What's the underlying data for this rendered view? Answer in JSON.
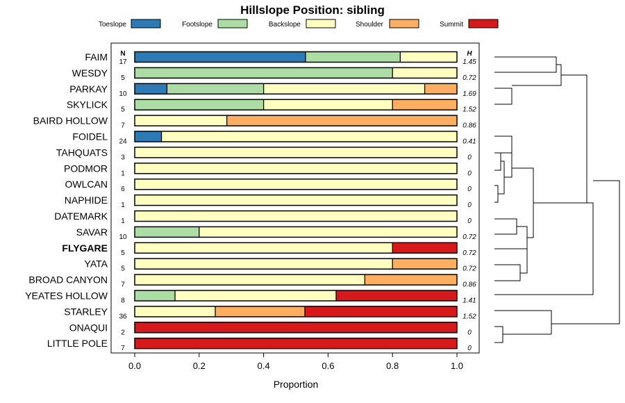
{
  "chart_data": {
    "type": "bar",
    "orientation": "horizontal",
    "stacked": true,
    "title": "Hillslope Position: sibling",
    "xlabel": "Proportion",
    "xlim": [
      0,
      1
    ],
    "xticks": [
      "0.0",
      "0.2",
      "0.4",
      "0.6",
      "0.8",
      "1.0"
    ],
    "n_header": "N",
    "h_header": "H",
    "legend": [
      {
        "name": "Toeslope",
        "color": "#2c7bb6"
      },
      {
        "name": "Footslope",
        "color": "#abdda4"
      },
      {
        "name": "Backslope",
        "color": "#ffffbf"
      },
      {
        "name": "Shoulder",
        "color": "#fdae61"
      },
      {
        "name": "Summit",
        "color": "#d7191c"
      }
    ],
    "rows": [
      {
        "name": "FAIM",
        "n": "17",
        "h": "1.45",
        "bold": false,
        "values": [
          0.53,
          0.294,
          0.176,
          0,
          0
        ]
      },
      {
        "name": "WESDY",
        "n": "5",
        "h": "0.72",
        "bold": false,
        "values": [
          0,
          0.8,
          0.2,
          0,
          0
        ]
      },
      {
        "name": "PARKAY",
        "n": "10",
        "h": "1.69",
        "bold": false,
        "values": [
          0.1,
          0.3,
          0.5,
          0.1,
          0
        ]
      },
      {
        "name": "SKYLICK",
        "n": "5",
        "h": "1.52",
        "bold": false,
        "values": [
          0,
          0.4,
          0.4,
          0.2,
          0
        ]
      },
      {
        "name": "BAIRD HOLLOW",
        "n": "7",
        "h": "0.86",
        "bold": false,
        "values": [
          0,
          0,
          0.286,
          0.714,
          0
        ]
      },
      {
        "name": "FOIDEL",
        "n": "24",
        "h": "0.41",
        "bold": false,
        "values": [
          0.083,
          0,
          0.917,
          0,
          0
        ]
      },
      {
        "name": "TAHQUATS",
        "n": "3",
        "h": "0",
        "bold": false,
        "values": [
          0,
          0,
          1,
          0,
          0
        ]
      },
      {
        "name": "PODMOR",
        "n": "1",
        "h": "0",
        "bold": false,
        "values": [
          0,
          0,
          1,
          0,
          0
        ]
      },
      {
        "name": "OWLCAN",
        "n": "6",
        "h": "0",
        "bold": false,
        "values": [
          0,
          0,
          1,
          0,
          0
        ]
      },
      {
        "name": "NAPHIDE",
        "n": "1",
        "h": "0",
        "bold": false,
        "values": [
          0,
          0,
          1,
          0,
          0
        ]
      },
      {
        "name": "DATEMARK",
        "n": "1",
        "h": "0",
        "bold": false,
        "values": [
          0,
          0,
          1,
          0,
          0
        ]
      },
      {
        "name": "SAVAR",
        "n": "10",
        "h": "0.72",
        "bold": false,
        "values": [
          0,
          0.2,
          0.8,
          0,
          0
        ]
      },
      {
        "name": "FLYGARE",
        "n": "5",
        "h": "0.72",
        "bold": true,
        "values": [
          0,
          0,
          0.8,
          0,
          0.2
        ]
      },
      {
        "name": "YATA",
        "n": "5",
        "h": "0.72",
        "bold": false,
        "values": [
          0,
          0,
          0.8,
          0.2,
          0
        ]
      },
      {
        "name": "BROAD CANYON",
        "n": "7",
        "h": "0.86",
        "bold": false,
        "values": [
          0,
          0,
          0.714,
          0.286,
          0
        ]
      },
      {
        "name": "YEATES HOLLOW",
        "n": "8",
        "h": "1.41",
        "bold": false,
        "values": [
          0,
          0.125,
          0.5,
          0,
          0.375
        ]
      },
      {
        "name": "STARLEY",
        "n": "36",
        "h": "1.52",
        "bold": false,
        "values": [
          0,
          0,
          0.25,
          0.278,
          0.472
        ]
      },
      {
        "name": "ONAQUI",
        "n": "2",
        "h": "0",
        "bold": false,
        "values": [
          0,
          0,
          0,
          0,
          1
        ]
      },
      {
        "name": "LITTLE POLE",
        "n": "7",
        "h": "0",
        "bold": false,
        "values": [
          0,
          0,
          0,
          0,
          1
        ]
      }
    ]
  }
}
